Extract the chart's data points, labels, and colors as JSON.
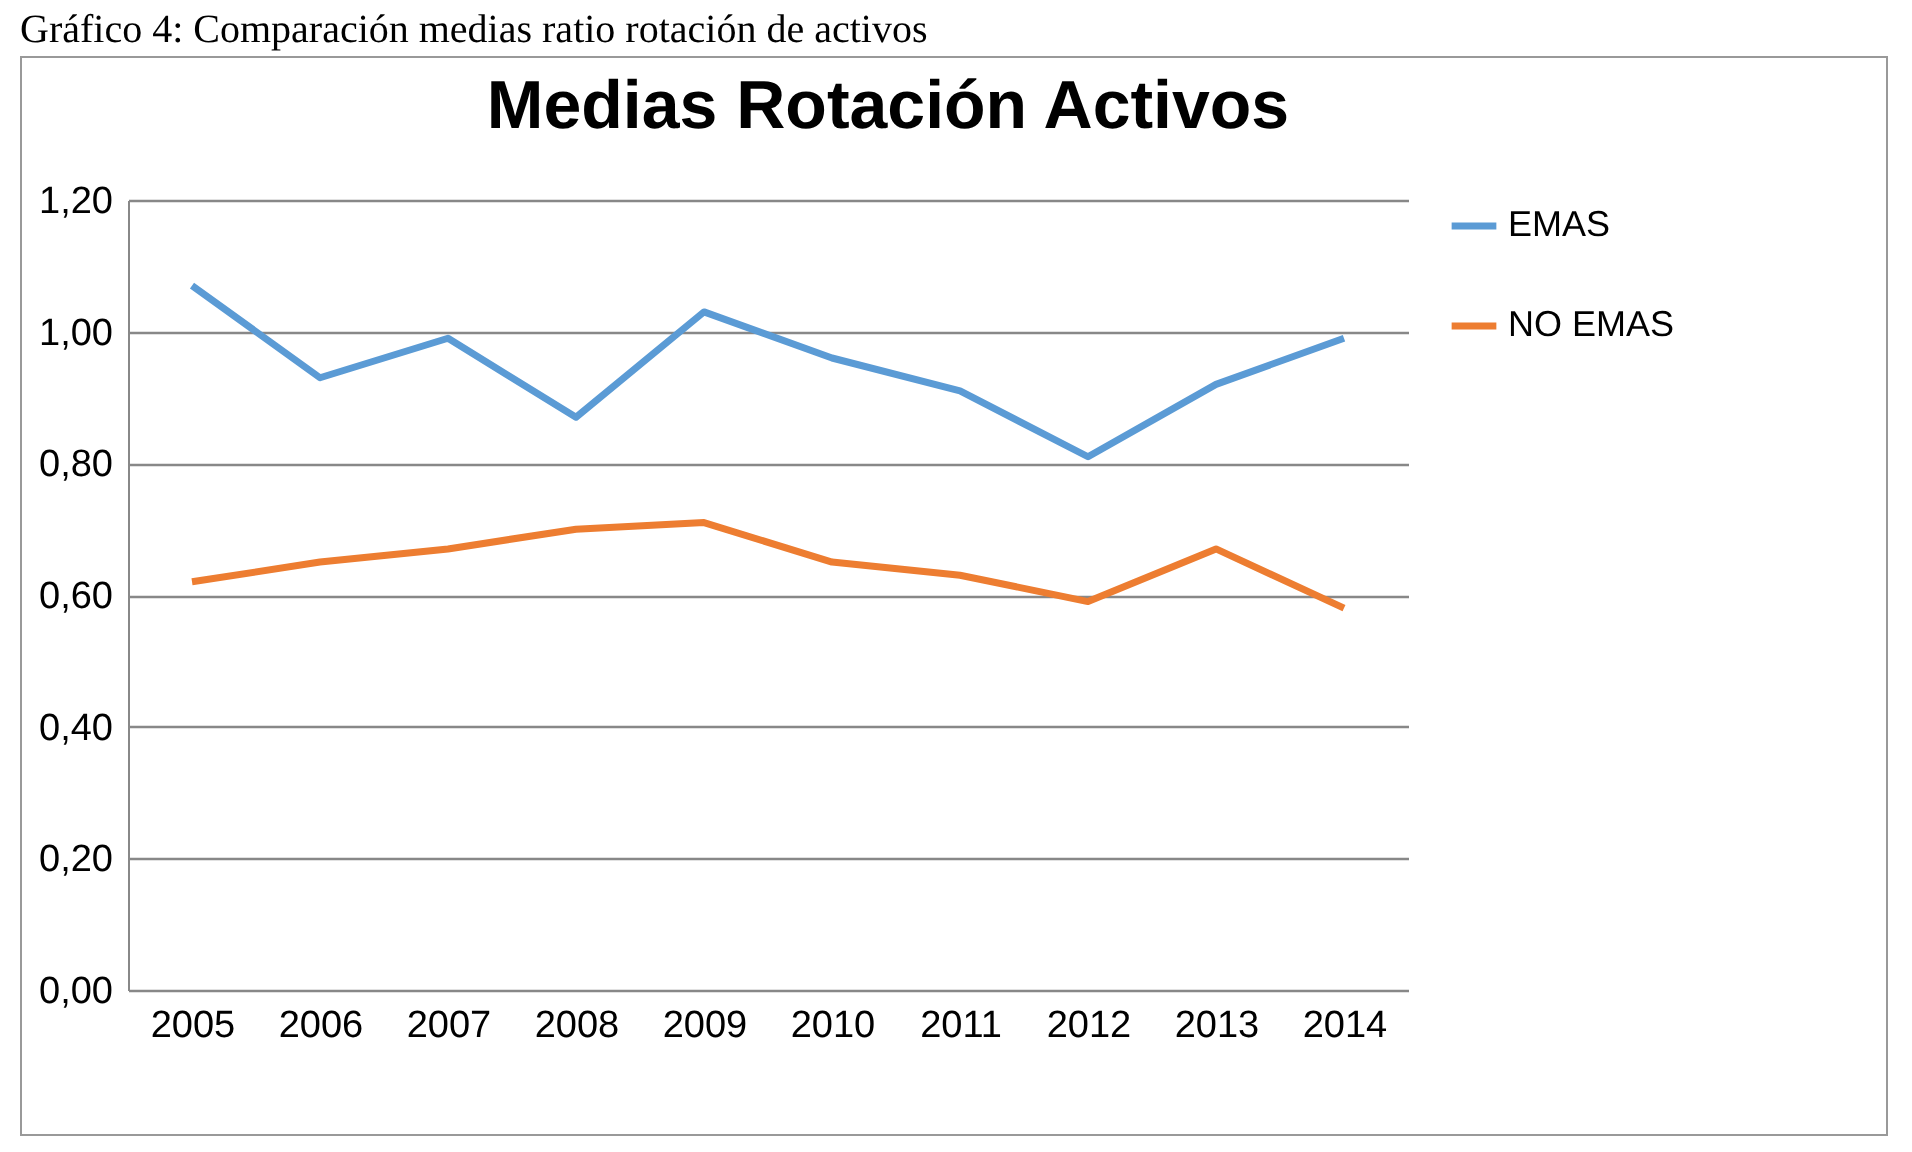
{
  "chart_data": {
    "type": "line",
    "title": "Medias Rotación Activos",
    "annotations": [
      "Gráfico 4: Comparación medias ratio rotación de activos"
    ],
    "categories": [
      "2005",
      "2006",
      "2007",
      "2008",
      "2009",
      "2010",
      "2011",
      "2012",
      "2013",
      "2014"
    ],
    "series": [
      {
        "name": "EMAS",
        "color": "#5b9bd5",
        "values": [
          1.07,
          0.93,
          0.99,
          0.87,
          1.03,
          0.96,
          0.91,
          0.81,
          0.92,
          0.99
        ]
      },
      {
        "name": "NO EMAS",
        "color": "#ed7d31",
        "values": [
          0.62,
          0.65,
          0.67,
          0.7,
          0.71,
          0.65,
          0.63,
          0.59,
          0.67,
          0.58
        ]
      }
    ],
    "ylim": [
      0,
      1.2
    ],
    "yticks": [
      {
        "value": 0,
        "label": "0,00"
      },
      {
        "value": 0.2,
        "label": "0,20"
      },
      {
        "value": 0.4,
        "label": "0,40"
      },
      {
        "value": 0.6,
        "label": "0,60"
      },
      {
        "value": 0.8,
        "label": "0,80"
      },
      {
        "value": 1,
        "label": "1,00"
      },
      {
        "value": 1.2,
        "label": "1,20"
      }
    ],
    "grid": "y",
    "legend": "right",
    "line_style": "solid",
    "marker": "none"
  }
}
